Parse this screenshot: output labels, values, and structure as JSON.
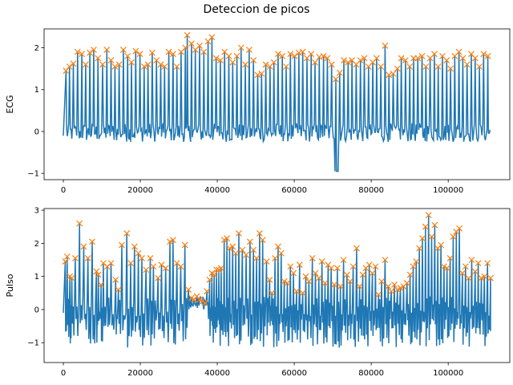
{
  "title": "Deteccion de picos",
  "colors": {
    "signal": "#1f77b4",
    "peaks": "#ff7f0e"
  },
  "chart_data": [
    {
      "type": "line",
      "ylabel": "ECG",
      "xlim": [
        -5000,
        116000
      ],
      "ylim": [
        -1.15,
        2.45
      ],
      "xticks": [
        0,
        20000,
        40000,
        60000,
        80000,
        100000
      ],
      "xtick_labels": [
        "0",
        "20000",
        "40000",
        "60000",
        "80000",
        "100000"
      ],
      "yticks": [
        -1,
        0,
        1,
        2
      ],
      "ytick_labels": [
        "−1",
        "0",
        "1",
        "2"
      ],
      "signal": {
        "x_start": 0,
        "x_end": 111000,
        "baseline_band": [
          -0.25,
          0.2
        ],
        "min": -0.95,
        "min_x": 71000
      },
      "peaks": [
        [
          700,
          1.45
        ],
        [
          1600,
          1.55
        ],
        [
          2600,
          1.62
        ],
        [
          3700,
          1.9
        ],
        [
          4800,
          1.85
        ],
        [
          5800,
          1.6
        ],
        [
          6900,
          1.88
        ],
        [
          7900,
          1.95
        ],
        [
          9000,
          1.75
        ],
        [
          10200,
          1.6
        ],
        [
          11300,
          1.95
        ],
        [
          12400,
          1.7
        ],
        [
          13400,
          1.55
        ],
        [
          14500,
          1.6
        ],
        [
          15600,
          1.95
        ],
        [
          16700,
          1.8
        ],
        [
          17700,
          1.65
        ],
        [
          18800,
          1.92
        ],
        [
          19900,
          1.85
        ],
        [
          21000,
          1.55
        ],
        [
          22000,
          1.6
        ],
        [
          23100,
          1.88
        ],
        [
          24200,
          1.7
        ],
        [
          25300,
          1.6
        ],
        [
          26300,
          1.55
        ],
        [
          27400,
          1.9
        ],
        [
          28500,
          1.85
        ],
        [
          29500,
          1.55
        ],
        [
          30600,
          1.9
        ],
        [
          31700,
          2.0
        ],
        [
          32200,
          2.3
        ],
        [
          33300,
          2.1
        ],
        [
          34300,
          1.95
        ],
        [
          35400,
          2.05
        ],
        [
          36500,
          1.9
        ],
        [
          37600,
          2.15
        ],
        [
          38600,
          2.25
        ],
        [
          39700,
          1.75
        ],
        [
          40800,
          1.7
        ],
        [
          41900,
          1.9
        ],
        [
          43000,
          1.8
        ],
        [
          44000,
          1.65
        ],
        [
          45100,
          1.8
        ],
        [
          46200,
          2.0
        ],
        [
          47300,
          1.6
        ],
        [
          48300,
          1.95
        ],
        [
          49400,
          1.7
        ],
        [
          50500,
          1.35
        ],
        [
          51500,
          1.38
        ],
        [
          52600,
          1.6
        ],
        [
          53700,
          1.55
        ],
        [
          54700,
          1.65
        ],
        [
          55800,
          1.85
        ],
        [
          56900,
          1.8
        ],
        [
          57900,
          1.55
        ],
        [
          59000,
          1.85
        ],
        [
          60100,
          1.8
        ],
        [
          61200,
          1.88
        ],
        [
          62200,
          1.9
        ],
        [
          63300,
          1.75
        ],
        [
          64400,
          1.85
        ],
        [
          65400,
          1.65
        ],
        [
          66500,
          1.78
        ],
        [
          67600,
          1.8
        ],
        [
          68600,
          1.75
        ],
        [
          69700,
          1.6
        ],
        [
          70800,
          1.25
        ],
        [
          71800,
          1.4
        ],
        [
          72900,
          1.7
        ],
        [
          74000,
          1.65
        ],
        [
          75000,
          1.7
        ],
        [
          76100,
          1.6
        ],
        [
          77200,
          1.7
        ],
        [
          78200,
          1.75
        ],
        [
          79300,
          1.55
        ],
        [
          80400,
          1.65
        ],
        [
          81400,
          1.75
        ],
        [
          82500,
          1.55
        ],
        [
          83600,
          2.05
        ],
        [
          84600,
          1.35
        ],
        [
          85700,
          1.38
        ],
        [
          86800,
          1.5
        ],
        [
          87800,
          1.75
        ],
        [
          88900,
          1.7
        ],
        [
          90000,
          1.55
        ],
        [
          91000,
          1.75
        ],
        [
          92100,
          1.75
        ],
        [
          93200,
          1.8
        ],
        [
          94200,
          1.55
        ],
        [
          95300,
          1.75
        ],
        [
          96400,
          1.85
        ],
        [
          97400,
          1.55
        ],
        [
          98500,
          1.8
        ],
        [
          99600,
          1.7
        ],
        [
          100600,
          1.5
        ],
        [
          101700,
          1.8
        ],
        [
          102800,
          1.9
        ],
        [
          103800,
          1.75
        ],
        [
          104900,
          1.6
        ],
        [
          106000,
          1.85
        ],
        [
          107000,
          1.75
        ],
        [
          108100,
          1.55
        ],
        [
          109200,
          1.85
        ],
        [
          110300,
          1.8
        ]
      ]
    },
    {
      "type": "line",
      "ylabel": "Pulso",
      "xlim": [
        -5000,
        116000
      ],
      "ylim": [
        -1.6,
        3.05
      ],
      "xticks": [
        0,
        20000,
        40000,
        60000,
        80000,
        100000
      ],
      "xtick_labels": [
        "0",
        "20000",
        "40000",
        "60000",
        "80000",
        "100000"
      ],
      "yticks": [
        -1,
        0,
        1,
        2,
        3
      ],
      "ytick_labels": [
        "−1",
        "0",
        "1",
        "2",
        "3"
      ],
      "signal": {
        "x_start": 0,
        "x_end": 111000,
        "min": -1.45
      },
      "peaks": [
        [
          500,
          1.45
        ],
        [
          1000,
          1.6
        ],
        [
          1700,
          1.0
        ],
        [
          2200,
          0.95
        ],
        [
          3100,
          1.55
        ],
        [
          4200,
          2.6
        ],
        [
          5300,
          1.9
        ],
        [
          6400,
          1.55
        ],
        [
          7500,
          2.05
        ],
        [
          8600,
          1.15
        ],
        [
          9100,
          1.05
        ],
        [
          9800,
          0.75
        ],
        [
          10400,
          1.4
        ],
        [
          11400,
          1.3
        ],
        [
          12400,
          1.4
        ],
        [
          13600,
          0.9
        ],
        [
          14300,
          0.6
        ],
        [
          15200,
          1.95
        ],
        [
          16500,
          2.3
        ],
        [
          17500,
          1.4
        ],
        [
          18500,
          1.9
        ],
        [
          19500,
          1.7
        ],
        [
          20400,
          1.55
        ],
        [
          21500,
          1.2
        ],
        [
          22600,
          1.55
        ],
        [
          23400,
          1.3
        ],
        [
          24600,
          0.95
        ],
        [
          25500,
          1.35
        ],
        [
          26600,
          1.25
        ],
        [
          27700,
          2.05
        ],
        [
          28500,
          2.1
        ],
        [
          29500,
          1.4
        ],
        [
          30500,
          1.3
        ],
        [
          31600,
          1.95
        ],
        [
          32500,
          0.6
        ],
        [
          33300,
          0.35
        ],
        [
          34000,
          0.3
        ],
        [
          34700,
          0.4
        ],
        [
          35400,
          0.3
        ],
        [
          36200,
          0.25
        ],
        [
          36800,
          0.2
        ],
        [
          37300,
          0.55
        ],
        [
          38000,
          0.9
        ],
        [
          38600,
          1.1
        ],
        [
          39200,
          1.05
        ],
        [
          39800,
          1.2
        ],
        [
          40400,
          1.2
        ],
        [
          41000,
          1.25
        ],
        [
          41800,
          2.1
        ],
        [
          42500,
          2.15
        ],
        [
          43200,
          1.85
        ],
        [
          44000,
          1.9
        ],
        [
          44800,
          1.7
        ],
        [
          45600,
          2.3
        ],
        [
          46500,
          1.8
        ],
        [
          47500,
          1.65
        ],
        [
          48500,
          2.05
        ],
        [
          49400,
          1.8
        ],
        [
          50200,
          1.55
        ],
        [
          51000,
          2.3
        ],
        [
          51800,
          2.1
        ],
        [
          52800,
          1.45
        ],
        [
          53600,
          0.9
        ],
        [
          54200,
          0.5
        ],
        [
          55000,
          1.55
        ],
        [
          55800,
          1.9
        ],
        [
          56600,
          1.7
        ],
        [
          57400,
          0.85
        ],
        [
          58200,
          0.8
        ],
        [
          59000,
          1.3
        ],
        [
          59800,
          1.1
        ],
        [
          60600,
          0.55
        ],
        [
          61400,
          1.35
        ],
        [
          62200,
          0.5
        ],
        [
          63000,
          1.0
        ],
        [
          63800,
          0.85
        ],
        [
          64700,
          1.55
        ],
        [
          65500,
          1.1
        ],
        [
          66400,
          0.95
        ],
        [
          67200,
          1.45
        ],
        [
          68000,
          0.8
        ],
        [
          68800,
          1.35
        ],
        [
          69600,
          1.25
        ],
        [
          70400,
          0.75
        ],
        [
          71200,
          1.25
        ],
        [
          72000,
          0.7
        ],
        [
          72800,
          1.5
        ],
        [
          73700,
          1.05
        ],
        [
          74500,
          0.85
        ],
        [
          75300,
          1.3
        ],
        [
          76200,
          1.85
        ],
        [
          77000,
          0.7
        ],
        [
          77800,
          1.05
        ],
        [
          78600,
          1.25
        ],
        [
          79500,
          1.35
        ],
        [
          80300,
          1.1
        ],
        [
          81100,
          1.3
        ],
        [
          81900,
          0.45
        ],
        [
          82700,
          0.85
        ],
        [
          83600,
          1.5
        ],
        [
          84400,
          0.7
        ],
        [
          85200,
          0.55
        ],
        [
          86000,
          0.75
        ],
        [
          86800,
          0.6
        ],
        [
          87600,
          0.65
        ],
        [
          88400,
          0.7
        ],
        [
          89300,
          0.8
        ],
        [
          90100,
          1.05
        ],
        [
          90900,
          1.3
        ],
        [
          91700,
          1.45
        ],
        [
          92500,
          1.85
        ],
        [
          93300,
          2.15
        ],
        [
          94100,
          2.5
        ],
        [
          94900,
          2.85
        ],
        [
          95700,
          2.2
        ],
        [
          96500,
          2.55
        ],
        [
          97300,
          1.85
        ],
        [
          98100,
          1.95
        ],
        [
          98900,
          1.3
        ],
        [
          99700,
          1.25
        ],
        [
          100500,
          1.55
        ],
        [
          101300,
          2.2
        ],
        [
          102100,
          2.35
        ],
        [
          102900,
          2.45
        ],
        [
          103700,
          1.1
        ],
        [
          104500,
          1.3
        ],
        [
          105300,
          0.95
        ],
        [
          106100,
          1.5
        ],
        [
          107000,
          1.15
        ],
        [
          107800,
          1.4
        ],
        [
          108600,
          0.95
        ],
        [
          109400,
          1.0
        ],
        [
          110200,
          1.4
        ],
        [
          111000,
          0.95
        ]
      ]
    }
  ]
}
